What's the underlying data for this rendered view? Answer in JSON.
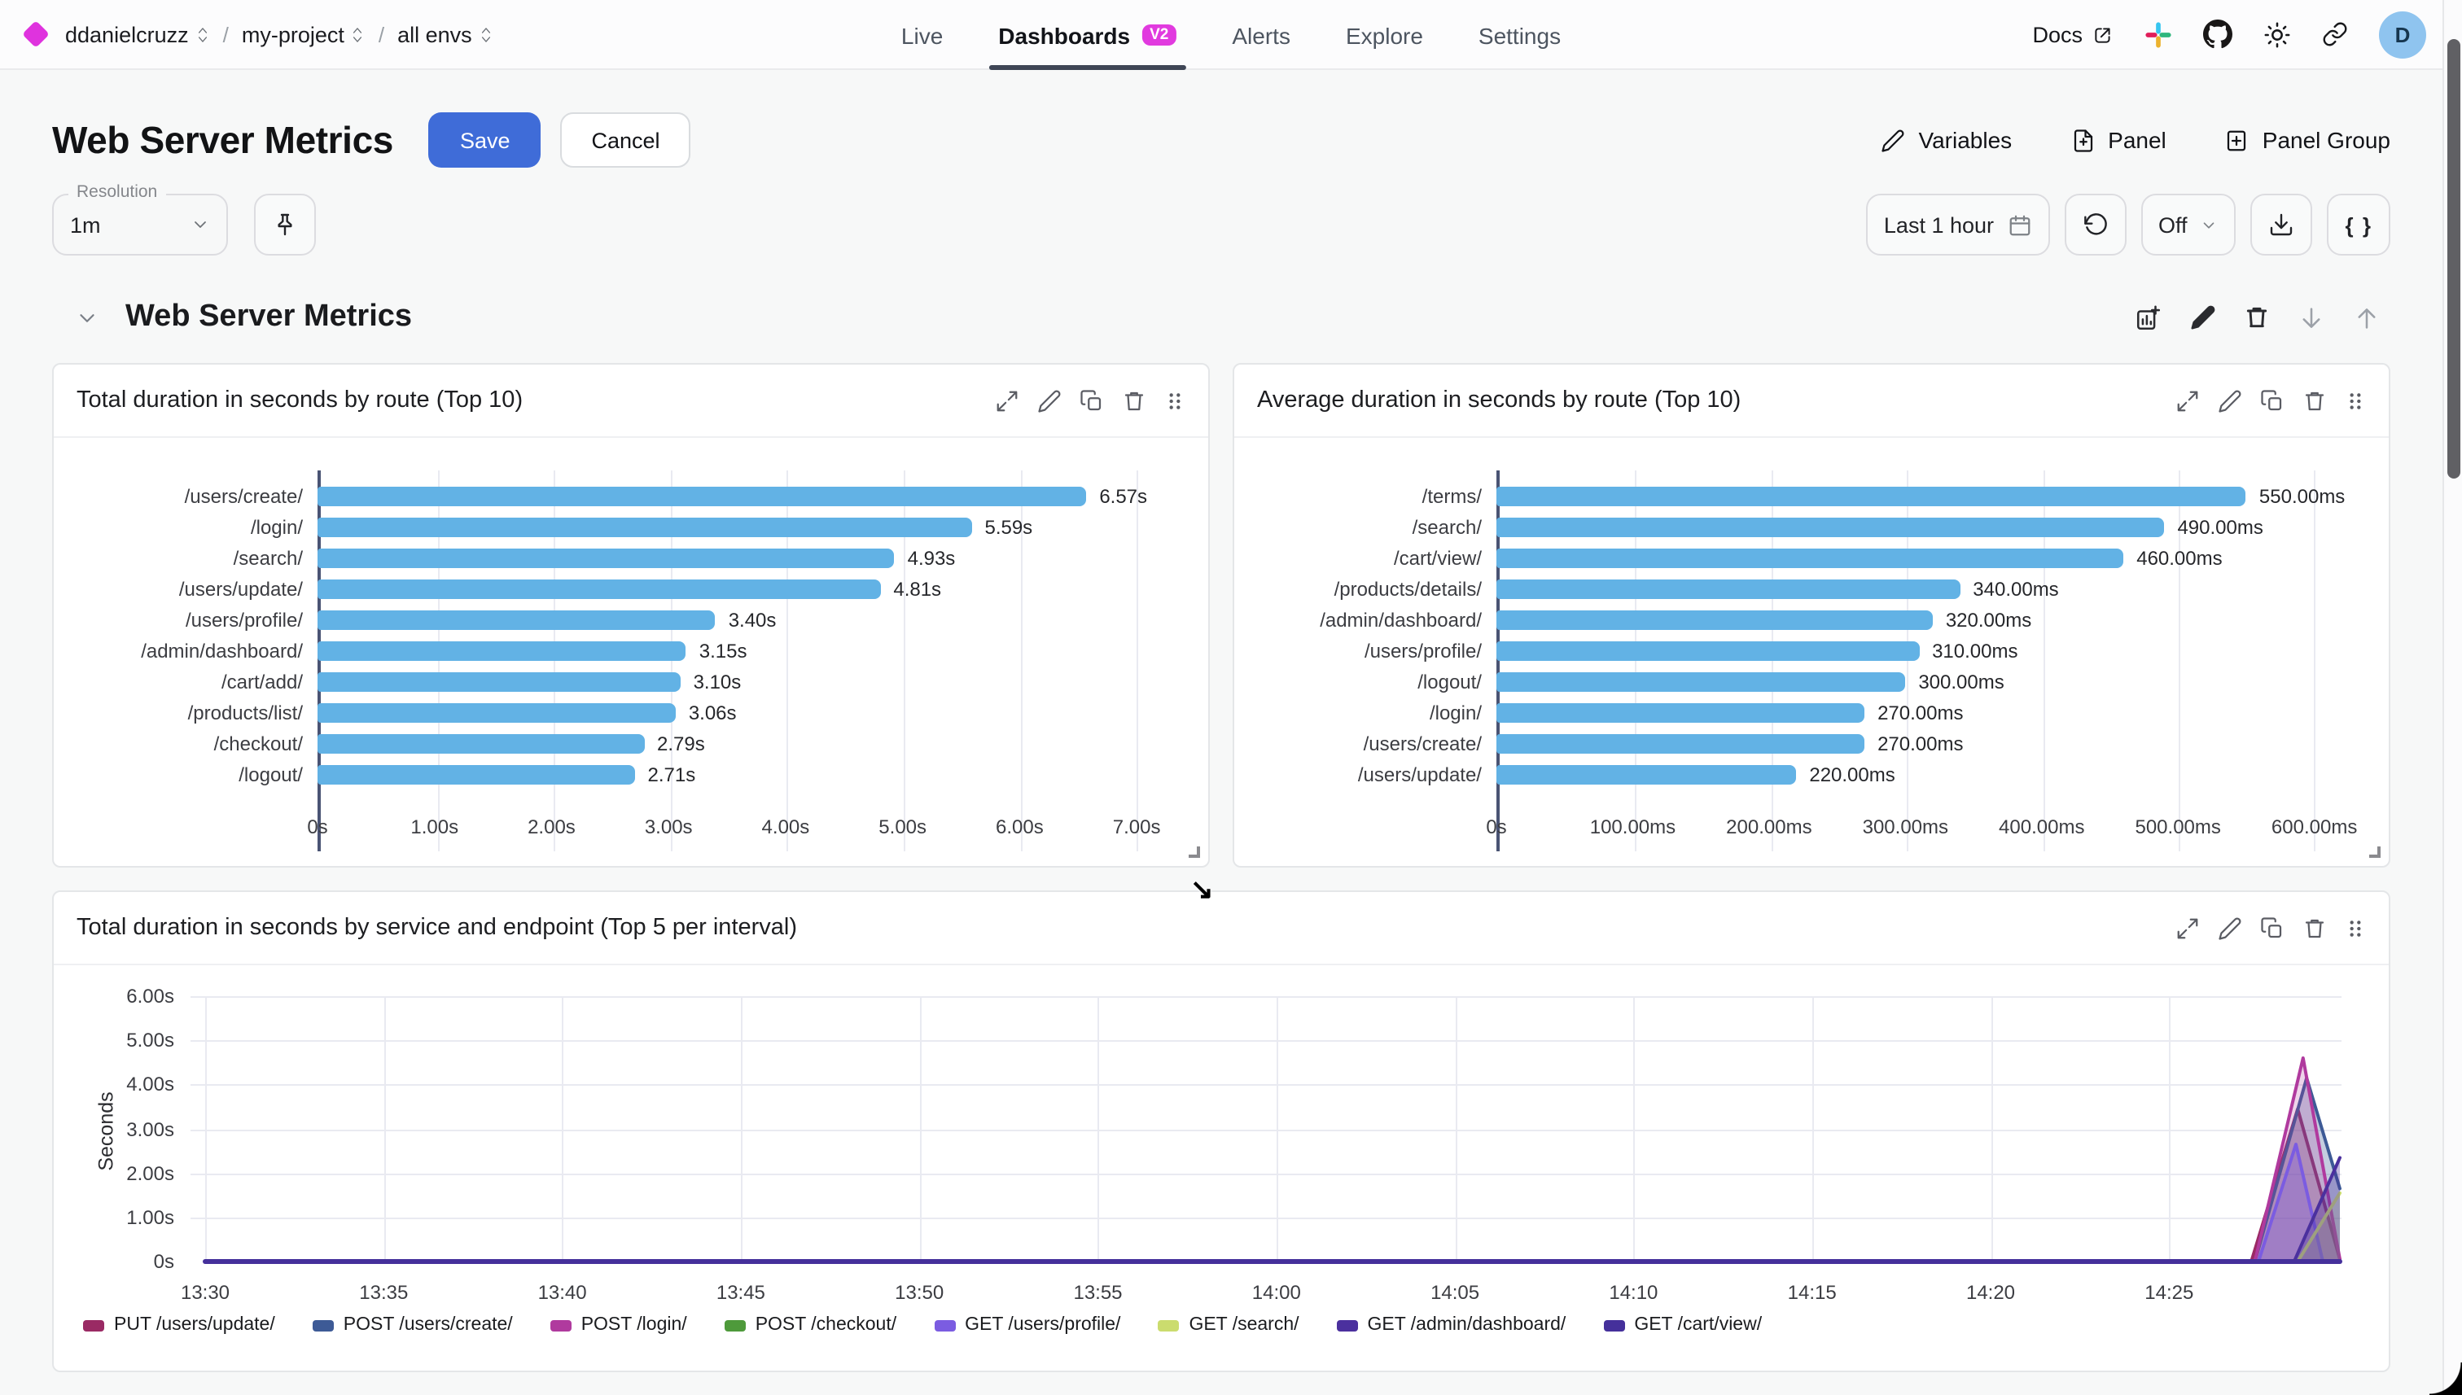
{
  "header": {
    "org": "ddanielcruzz",
    "sep": "/",
    "project": "my-project",
    "env": "all envs",
    "nav": [
      {
        "label": "Live"
      },
      {
        "label": "Dashboards",
        "badge": "V2"
      },
      {
        "label": "Alerts"
      },
      {
        "label": "Explore"
      },
      {
        "label": "Settings"
      }
    ],
    "docs": "Docs",
    "avatar_initial": "D"
  },
  "toolbar": {
    "title": "Web Server Metrics",
    "save": "Save",
    "cancel": "Cancel",
    "variables": "Variables",
    "panel": "Panel",
    "panel_group": "Panel Group"
  },
  "controls": {
    "resolution_label": "Resolution",
    "resolution_value": "1m",
    "time_range": "Last 1 hour",
    "refresh_value": "Off",
    "braces": "{ }"
  },
  "section": {
    "title": "Web Server Metrics"
  },
  "chart_data": [
    {
      "type": "bar",
      "orientation": "horizontal",
      "title": "Total duration in seconds by route (Top 10)",
      "unit": "s",
      "bar_color": "#62B2E5",
      "categories": [
        "/users/create/",
        "/login/",
        "/search/",
        "/users/update/",
        "/users/profile/",
        "/admin/dashboard/",
        "/cart/add/",
        "/products/list/",
        "/checkout/",
        "/logout/"
      ],
      "values": [
        6.57,
        5.59,
        4.93,
        4.81,
        3.4,
        3.15,
        3.1,
        3.06,
        2.79,
        2.71
      ],
      "value_labels": [
        "6.57s",
        "5.59s",
        "4.93s",
        "4.81s",
        "3.40s",
        "3.15s",
        "3.10s",
        "3.06s",
        "2.79s",
        "2.71s"
      ],
      "x_ticks": [
        {
          "v": 0,
          "label": "0s"
        },
        {
          "v": 1,
          "label": "1.00s"
        },
        {
          "v": 2,
          "label": "2.00s"
        },
        {
          "v": 3,
          "label": "3.00s"
        },
        {
          "v": 4,
          "label": "4.00s"
        },
        {
          "v": 5,
          "label": "5.00s"
        },
        {
          "v": 6,
          "label": "6.00s"
        },
        {
          "v": 7,
          "label": "7.00s"
        }
      ],
      "xmax": 7.5
    },
    {
      "type": "bar",
      "orientation": "horizontal",
      "title": "Average duration in seconds by route (Top 10)",
      "unit": "ms",
      "bar_color": "#62B2E5",
      "categories": [
        "/terms/",
        "/search/",
        "/cart/view/",
        "/products/details/",
        "/admin/dashboard/",
        "/users/profile/",
        "/logout/",
        "/login/",
        "/users/create/",
        "/users/update/"
      ],
      "values": [
        550,
        490,
        460,
        340,
        320,
        310,
        300,
        270,
        270,
        220
      ],
      "value_labels": [
        "550.00ms",
        "490.00ms",
        "460.00ms",
        "340.00ms",
        "320.00ms",
        "310.00ms",
        "300.00ms",
        "270.00ms",
        "270.00ms",
        "220.00ms"
      ],
      "x_ticks": [
        {
          "v": 0,
          "label": "0s"
        },
        {
          "v": 100,
          "label": "100.00ms"
        },
        {
          "v": 200,
          "label": "200.00ms"
        },
        {
          "v": 300,
          "label": "300.00ms"
        },
        {
          "v": 400,
          "label": "400.00ms"
        },
        {
          "v": 500,
          "label": "500.00ms"
        },
        {
          "v": 600,
          "label": "600.00ms"
        }
      ],
      "xmax": 645
    },
    {
      "type": "area",
      "title": "Total duration in seconds by service and endpoint (Top 5 per interval)",
      "ylabel": "Seconds",
      "ymax": 6,
      "y_ticks": [
        {
          "v": 0,
          "label": "0s"
        },
        {
          "v": 1,
          "label": "1.00s"
        },
        {
          "v": 2,
          "label": "2.00s"
        },
        {
          "v": 3,
          "label": "3.00s"
        },
        {
          "v": 4,
          "label": "4.00s"
        },
        {
          "v": 5,
          "label": "5.00s"
        },
        {
          "v": 6,
          "label": "6.00s"
        }
      ],
      "x_ticks": [
        {
          "m": 0,
          "label": "13:30"
        },
        {
          "m": 5,
          "label": "13:35"
        },
        {
          "m": 10,
          "label": "13:40"
        },
        {
          "m": 15,
          "label": "13:45"
        },
        {
          "m": 20,
          "label": "13:50"
        },
        {
          "m": 25,
          "label": "13:55"
        },
        {
          "m": 30,
          "label": "14:00"
        },
        {
          "m": 35,
          "label": "14:05"
        },
        {
          "m": 40,
          "label": "14:10"
        },
        {
          "m": 45,
          "label": "14:15"
        },
        {
          "m": 50,
          "label": "14:20"
        },
        {
          "m": 55,
          "label": "14:25"
        }
      ],
      "x_domain_minutes": [
        0,
        59.8
      ],
      "series": [
        {
          "name": "PUT /users/update/",
          "color": "#9A2A64",
          "fill_opacity": 0.28,
          "stroke_width": 2,
          "points": [
            [
              0,
              0
            ],
            [
              57.3,
              0
            ],
            [
              58.6,
              3.45
            ],
            [
              59.8,
              0.05
            ]
          ]
        },
        {
          "name": "POST /users/create/",
          "color": "#3D5A96",
          "fill_opacity": 0.3,
          "stroke_width": 2,
          "points": [
            [
              0,
              0
            ],
            [
              57.4,
              0
            ],
            [
              58.85,
              4.15
            ],
            [
              59.8,
              1.65
            ]
          ]
        },
        {
          "name": "POST /login/",
          "color": "#B03A9E",
          "fill_opacity": 0.22,
          "stroke_width": 2,
          "points": [
            [
              0,
              0
            ],
            [
              57.4,
              0
            ],
            [
              58.75,
              4.6
            ],
            [
              59.8,
              0.05
            ]
          ]
        },
        {
          "name": "POST /checkout/",
          "color": "#4E9A3B",
          "fill_opacity": 0,
          "stroke_width": 2,
          "points": [
            [
              0,
              0
            ],
            [
              59.8,
              0
            ]
          ]
        },
        {
          "name": "GET /users/profile/",
          "color": "#7B5CE1",
          "fill_opacity": 0.3,
          "stroke_width": 2,
          "points": [
            [
              0,
              0
            ],
            [
              57.5,
              0
            ],
            [
              58.55,
              2.65
            ],
            [
              59.3,
              0.02
            ]
          ]
        },
        {
          "name": "GET /search/",
          "color": "#CBDC6E",
          "fill_opacity": 0.25,
          "stroke_width": 2,
          "points": [
            [
              0,
              0
            ],
            [
              58.6,
              0
            ],
            [
              59.8,
              1.55
            ]
          ]
        },
        {
          "name": "GET /admin/dashboard/",
          "color": "#4B309E",
          "fill_opacity": 0.35,
          "stroke_width": 2,
          "points": [
            [
              0,
              0
            ],
            [
              58.5,
              0
            ],
            [
              59.8,
              2.35
            ]
          ]
        },
        {
          "name": "GET /cart/view/",
          "color": "#45309B",
          "fill_opacity": 0,
          "stroke_width": 3,
          "points": [
            [
              0,
              0
            ],
            [
              59.8,
              0
            ]
          ]
        }
      ]
    }
  ]
}
